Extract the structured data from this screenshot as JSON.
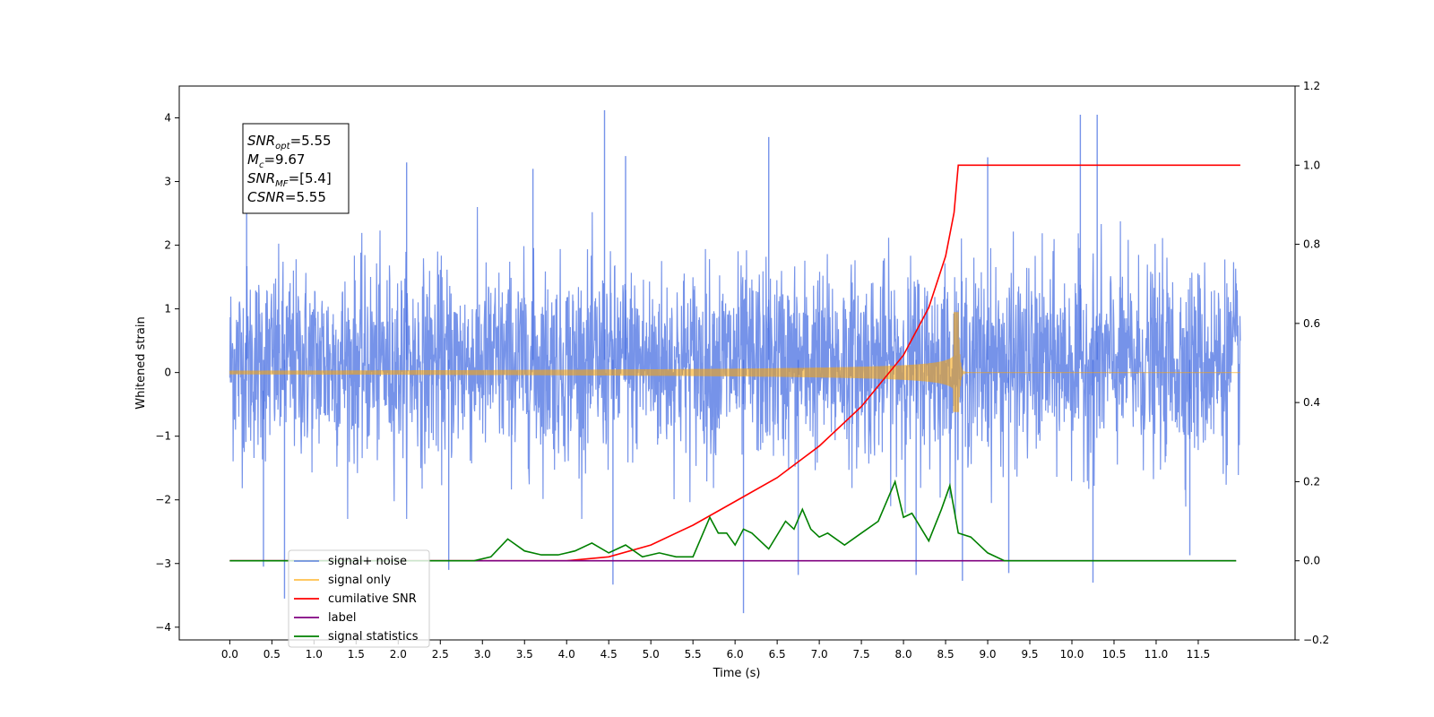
{
  "chart_data": {
    "type": "line",
    "title": "",
    "xlabel": "Time (s)",
    "ylabel": "Whitened strain",
    "xlim": [
      -0.6,
      12.65
    ],
    "ylim": [
      -4.2,
      4.5
    ],
    "y2lim": [
      -0.2,
      1.2
    ],
    "x_ticks": [
      0.0,
      0.5,
      1.0,
      1.5,
      2.0,
      2.5,
      3.0,
      3.5,
      4.0,
      4.5,
      5.0,
      5.5,
      6.0,
      6.5,
      7.0,
      7.5,
      8.0,
      8.5,
      9.0,
      9.5,
      10.0,
      10.5,
      11.0,
      11.5
    ],
    "x_tick_labels": [
      "0.0",
      "0.5",
      "1.0",
      "1.5",
      "2.0",
      "2.5",
      "3.0",
      "3.5",
      "4.0",
      "4.5",
      "5.0",
      "5.5",
      "6.0",
      "6.5",
      "7.0",
      "7.5",
      "8.0",
      "8.5",
      "9.0",
      "9.5",
      "10.0",
      "10.5",
      "11.0",
      "11.5"
    ],
    "y_ticks": [
      4,
      3,
      2,
      1,
      0,
      -1,
      -2,
      -3,
      -4
    ],
    "y_tick_labels": [
      "4",
      "3",
      "2",
      "1",
      "0",
      "−1",
      "−2",
      "−3",
      "−4"
    ],
    "y2_ticks": [
      1.2,
      1.0,
      0.8,
      0.6,
      0.4,
      0.2,
      0.0,
      -0.2
    ],
    "y2_tick_labels": [
      "1.2",
      "1.0",
      "0.8",
      "0.6",
      "0.4",
      "0.2",
      "0.0",
      "−0.2"
    ],
    "grid": false,
    "legend_position": "lower-left",
    "annotation": {
      "lines": [
        {
          "base": "SNR",
          "sub": "opt",
          "value": "=5.55"
        },
        {
          "base": "M",
          "sub": "c",
          "value": "=9.67"
        },
        {
          "base": "SNR",
          "sub": "MF",
          "value": "=[5.4]"
        },
        {
          "base": "CSNR",
          "sub": "",
          "value": "=5.55"
        }
      ]
    },
    "series": [
      {
        "name": "signal+ noise",
        "axis": "left",
        "color": "#4169e1",
        "style": "noise",
        "x_range": [
          0.0,
          12.0
        ],
        "typical_range": [
          -1.7,
          2.1
        ],
        "peaks": [
          {
            "x": 4.45,
            "y": 4.12
          },
          {
            "x": 10.1,
            "y": 4.05
          },
          {
            "x": 10.3,
            "y": 4.05
          },
          {
            "x": 9.0,
            "y": 3.38
          },
          {
            "x": 6.4,
            "y": 3.7
          },
          {
            "x": 4.7,
            "y": 3.4
          },
          {
            "x": 2.1,
            "y": 3.3
          },
          {
            "x": 3.6,
            "y": 3.2
          },
          {
            "x": 0.2,
            "y": 2.8
          },
          {
            "x": 6.1,
            "y": -3.78
          },
          {
            "x": 0.65,
            "y": -3.55
          },
          {
            "x": 4.55,
            "y": -3.33
          },
          {
            "x": 8.7,
            "y": -3.27
          },
          {
            "x": 10.25,
            "y": -3.3
          },
          {
            "x": 6.75,
            "y": -3.18
          },
          {
            "x": 8.15,
            "y": -3.18
          },
          {
            "x": 2.6,
            "y": -3.1
          },
          {
            "x": 0.4,
            "y": -3.05
          },
          {
            "x": 9.25,
            "y": -3.15
          },
          {
            "x": 11.4,
            "y": -2.87
          }
        ]
      },
      {
        "name": "signal only",
        "axis": "left",
        "color": "#ffa500",
        "style": "chirp",
        "x_range": [
          0.0,
          12.0
        ],
        "merger_time": 8.65,
        "peak_amplitude": 0.95,
        "min_at_merger": -0.62
      },
      {
        "name": "cumilative SNR",
        "axis": "right",
        "color": "#ff0000",
        "x": [
          0.0,
          4.0,
          4.5,
          5.0,
          5.5,
          6.0,
          6.5,
          7.0,
          7.5,
          8.0,
          8.3,
          8.5,
          8.6,
          8.65,
          12.0
        ],
        "y": [
          0.0,
          0.0,
          0.01,
          0.04,
          0.09,
          0.15,
          0.21,
          0.29,
          0.39,
          0.52,
          0.64,
          0.77,
          0.88,
          1.0,
          1.0
        ]
      },
      {
        "name": "label",
        "axis": "right",
        "color": "#800080",
        "x": [
          0.0,
          11.95
        ],
        "y": [
          0.0,
          0.0
        ]
      },
      {
        "name": "signal statistics",
        "axis": "right",
        "color": "#008000",
        "x": [
          0.0,
          2.9,
          3.1,
          3.3,
          3.5,
          3.7,
          3.9,
          4.1,
          4.3,
          4.5,
          4.7,
          4.9,
          5.1,
          5.3,
          5.5,
          5.7,
          5.8,
          5.9,
          6.0,
          6.1,
          6.2,
          6.4,
          6.6,
          6.7,
          6.8,
          6.9,
          7.0,
          7.1,
          7.3,
          7.5,
          7.7,
          7.9,
          8.0,
          8.1,
          8.3,
          8.45,
          8.55,
          8.65,
          8.8,
          9.0,
          9.2,
          11.95
        ],
        "y": [
          0.0,
          0.0,
          0.01,
          0.055,
          0.025,
          0.015,
          0.015,
          0.025,
          0.045,
          0.02,
          0.04,
          0.01,
          0.02,
          0.01,
          0.01,
          0.11,
          0.07,
          0.07,
          0.04,
          0.08,
          0.07,
          0.03,
          0.1,
          0.08,
          0.13,
          0.08,
          0.06,
          0.07,
          0.04,
          0.07,
          0.1,
          0.2,
          0.11,
          0.12,
          0.05,
          0.13,
          0.19,
          0.07,
          0.06,
          0.02,
          0.0,
          0.0
        ]
      }
    ],
    "legend_entries": [
      {
        "label": "signal+ noise",
        "color": "#4169e1"
      },
      {
        "label": "signal only",
        "color": "#ffa500"
      },
      {
        "label": "cumilative SNR",
        "color": "#ff0000"
      },
      {
        "label": "label",
        "color": "#800080"
      },
      {
        "label": "signal statistics",
        "color": "#008000"
      }
    ]
  }
}
